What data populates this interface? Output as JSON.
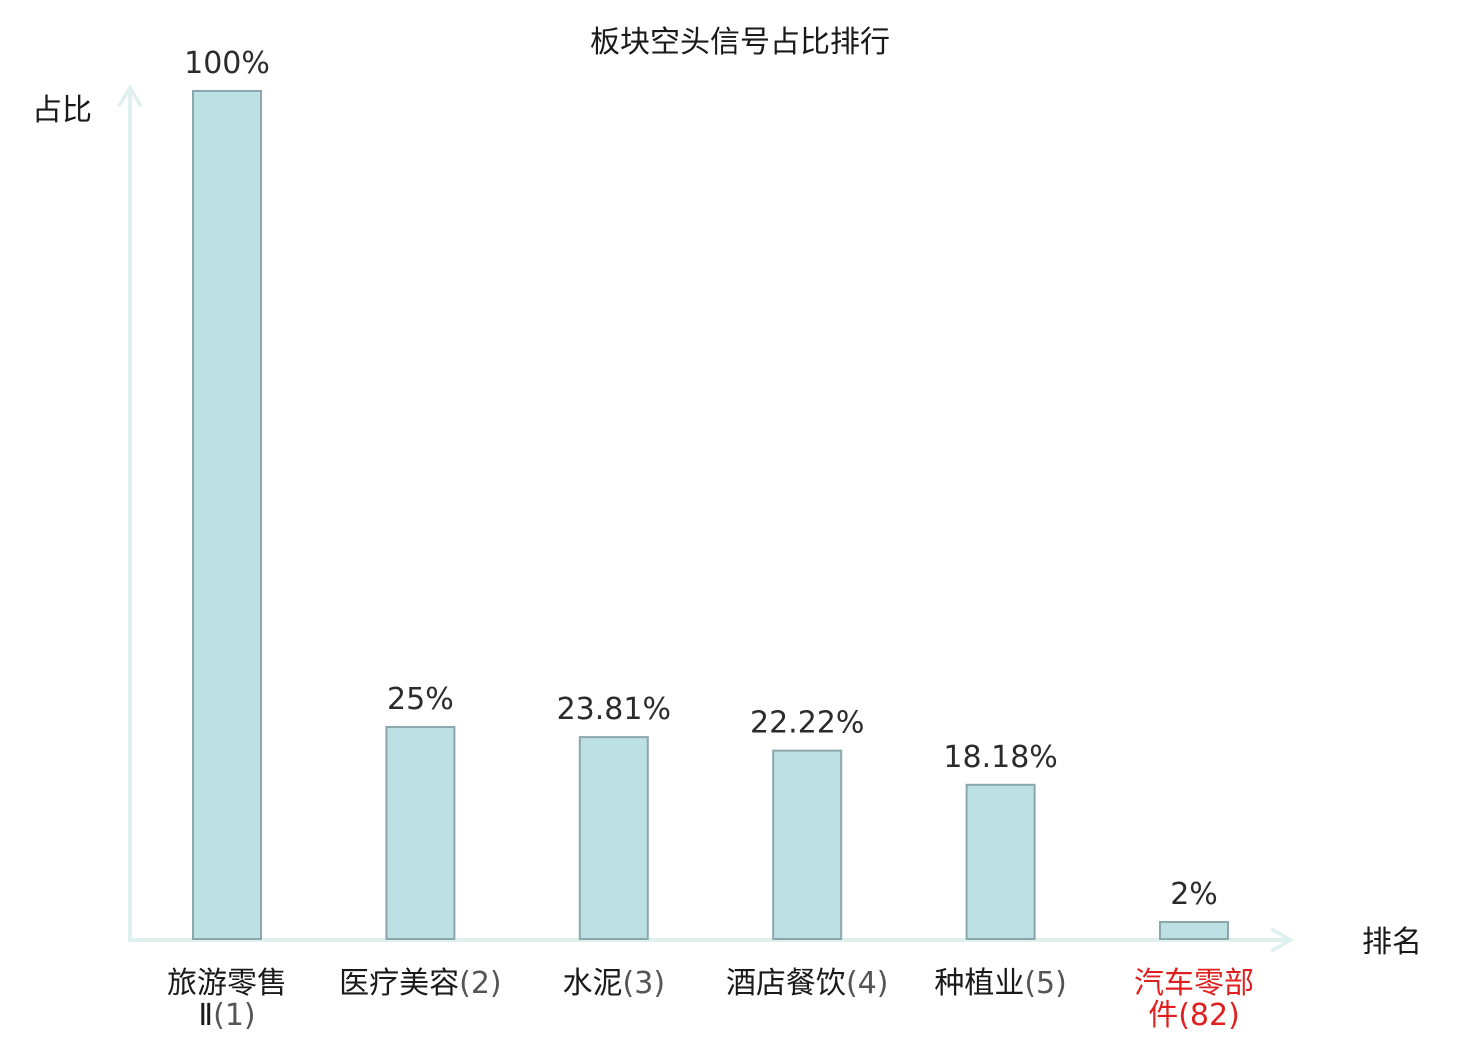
{
  "chart_data": {
    "type": "bar",
    "title": "板块空头信号占比排行",
    "ylabel": "占比",
    "xlabel": "排名",
    "ylim": [
      0,
      100
    ],
    "grid": false,
    "legend": "none",
    "bar_color": "#bde0e3",
    "bar_edge_color": "#8aa7ab",
    "axis_color": "#dff1ef",
    "highlight_color": "#e02020",
    "categories": [
      {
        "name_lines": [
          "旅游零售",
          "Ⅱ"
        ],
        "rank": "(1)",
        "highlight": false
      },
      {
        "name_lines": [
          "医疗美容"
        ],
        "rank": "(2)",
        "highlight": false
      },
      {
        "name_lines": [
          "水泥"
        ],
        "rank": "(3)",
        "highlight": false
      },
      {
        "name_lines": [
          "酒店餐饮"
        ],
        "rank": "(4)",
        "highlight": false
      },
      {
        "name_lines": [
          "种植业"
        ],
        "rank": "(5)",
        "highlight": false
      },
      {
        "name_lines": [
          "汽车零部",
          "件"
        ],
        "rank": "(82)",
        "highlight": true
      }
    ],
    "values": [
      100,
      25,
      23.81,
      22.22,
      18.18,
      2
    ],
    "value_labels": [
      "100%",
      "25%",
      "23.81%",
      "22.22%",
      "18.18%",
      "2%"
    ]
  }
}
